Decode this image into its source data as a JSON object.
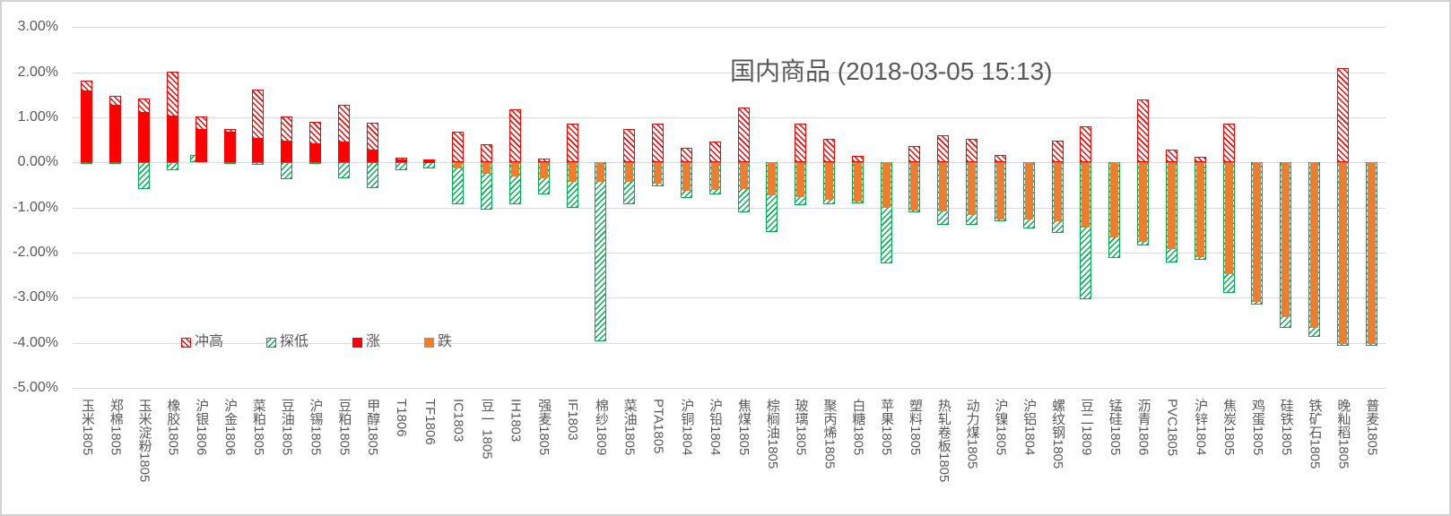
{
  "title": "国内商品 (2018-03-05 15:13)",
  "colors": {
    "surge_high": "#ff0000",
    "probe_low": "#00b050",
    "up": "#ff0000",
    "down": "#ed7d31",
    "gridline": "#d9d9d9",
    "text": "#595959"
  },
  "legend": [
    {
      "label": "冲高",
      "swatch": "hatch-red"
    },
    {
      "label": "探低",
      "swatch": "hatch-green"
    },
    {
      "label": "涨",
      "swatch": "solid-red"
    },
    {
      "label": "跌",
      "swatch": "solid-orange"
    }
  ],
  "chart_data": {
    "type": "bar",
    "title": "国内商品 (2018-03-05 15:13)",
    "ylabel": "",
    "unit": "%",
    "ylim": [
      -5,
      3
    ],
    "grid": true,
    "y_tick_labels": [
      "3.00%",
      "2.00%",
      "1.00%",
      "0.00%",
      "-1.00%",
      "-2.00%",
      "-3.00%",
      "-4.00%",
      "-5.00%"
    ],
    "legend_entries": [
      "冲高",
      "探低",
      "涨",
      "跌"
    ],
    "series_meaning": {
      "high": "冲高 intraday high % (red hatched)",
      "low": "探低 intraday low % (green hatched)",
      "change": "涨 close up % (solid red) / 跌 close down % (solid orange)"
    },
    "items": [
      {
        "name": "玉米1805",
        "high": 1.81,
        "low": -0.04,
        "change": 1.57
      },
      {
        "name": "郑棉1805",
        "high": 1.47,
        "low": -0.04,
        "change": 1.26
      },
      {
        "name": "玉米淀粉1805",
        "high": 1.41,
        "low": -0.59,
        "change": 1.1
      },
      {
        "name": "橡胶1805",
        "high": 2.02,
        "low": -0.17,
        "change": 1.01
      },
      {
        "name": "沪银1806",
        "high": 1.02,
        "low": 0.17,
        "change": 0.72
      },
      {
        "name": "沪金1806",
        "high": 0.75,
        "low": -0.03,
        "change": 0.66
      },
      {
        "name": "菜粕1805",
        "high": 1.62,
        "low": -0.05,
        "change": 0.53
      },
      {
        "name": "豆油1805",
        "high": 1.02,
        "low": -0.38,
        "change": 0.47
      },
      {
        "name": "沪锡1805",
        "high": 0.9,
        "low": -0.04,
        "change": 0.4
      },
      {
        "name": "豆粕1805",
        "high": 1.27,
        "low": -0.36,
        "change": 0.44
      },
      {
        "name": "甲醇1805",
        "high": 0.88,
        "low": -0.57,
        "change": 0.26
      },
      {
        "name": "T1806",
        "high": 0.11,
        "low": -0.18,
        "change": 0.04
      },
      {
        "name": "TF1806",
        "high": 0.07,
        "low": -0.14,
        "change": 0.02
      },
      {
        "name": "IC1803",
        "high": 0.68,
        "low": -0.93,
        "change": -0.14
      },
      {
        "name": "豆一 1805",
        "high": 0.4,
        "low": -1.05,
        "change": -0.25
      },
      {
        "name": "IH1803",
        "high": 1.17,
        "low": -0.93,
        "change": -0.32
      },
      {
        "name": "强麦1805",
        "high": 0.08,
        "low": -0.7,
        "change": -0.36
      },
      {
        "name": "IF1803",
        "high": 0.87,
        "low": -1.0,
        "change": -0.43
      },
      {
        "name": "棉纱1809",
        "high": 0.0,
        "low": -3.98,
        "change": -0.44
      },
      {
        "name": "菜油1805",
        "high": 0.74,
        "low": -0.92,
        "change": -0.44
      },
      {
        "name": "PTA1805",
        "high": 0.87,
        "low": -0.54,
        "change": -0.48
      },
      {
        "name": "沪铜1804",
        "high": 0.33,
        "low": -0.79,
        "change": -0.64
      },
      {
        "name": "沪铅1804",
        "high": 0.47,
        "low": -0.71,
        "change": -0.61
      },
      {
        "name": "焦煤1805",
        "high": 1.22,
        "low": -1.11,
        "change": -0.59
      },
      {
        "name": "棕榈油1805",
        "high": 0.0,
        "low": -1.54,
        "change": -0.73
      },
      {
        "name": "玻璃1805",
        "high": 0.87,
        "low": -0.94,
        "change": -0.77
      },
      {
        "name": "聚丙烯1805",
        "high": 0.53,
        "low": -0.93,
        "change": -0.83
      },
      {
        "name": "白糖1805",
        "high": 0.15,
        "low": -0.9,
        "change": -0.86
      },
      {
        "name": "苹果1805",
        "high": 0.0,
        "low": -2.24,
        "change": -1.01
      },
      {
        "name": "塑料1805",
        "high": 0.36,
        "low": -1.1,
        "change": -1.06
      },
      {
        "name": "热轧卷板1805",
        "high": 0.6,
        "low": -1.38,
        "change": -1.09
      },
      {
        "name": "动力煤1805",
        "high": 0.53,
        "low": -1.39,
        "change": -1.16
      },
      {
        "name": "沪镍1805",
        "high": 0.17,
        "low": -1.3,
        "change": -1.26
      },
      {
        "name": "沪铝1804",
        "high": 0.0,
        "low": -1.46,
        "change": -1.26
      },
      {
        "name": "螺纹钢1805",
        "high": 0.48,
        "low": -1.56,
        "change": -1.31
      },
      {
        "name": "豆二1809",
        "high": 0.81,
        "low": -3.03,
        "change": -1.44
      },
      {
        "name": "锰硅1805",
        "high": 0.0,
        "low": -2.12,
        "change": -1.66
      },
      {
        "name": "沥青1806",
        "high": 1.39,
        "low": -1.85,
        "change": -1.77
      },
      {
        "name": "PVC1805",
        "high": 0.28,
        "low": -2.22,
        "change": -1.92
      },
      {
        "name": "沪锌1804",
        "high": 0.13,
        "low": -2.16,
        "change": -2.11
      },
      {
        "name": "焦炭1805",
        "high": 0.87,
        "low": -2.9,
        "change": -2.48
      },
      {
        "name": "鸡蛋1805",
        "high": 0.0,
        "low": -3.15,
        "change": -3.1
      },
      {
        "name": "硅铁1805",
        "high": 0.0,
        "low": -3.68,
        "change": -3.44
      },
      {
        "name": "铁矿石1805",
        "high": 0.0,
        "low": -3.88,
        "change": -3.68
      },
      {
        "name": "晚籼稻1805",
        "high": 2.1,
        "low": -4.07,
        "change": -4.03
      },
      {
        "name": "普麦1805",
        "high": 0.0,
        "low": -4.06,
        "change": -4.03
      }
    ]
  }
}
